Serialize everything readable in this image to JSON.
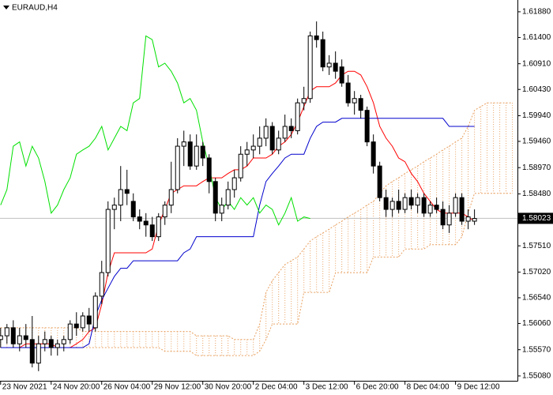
{
  "chart_data": {
    "type": "candlestick",
    "title": "EURAUD,H4",
    "ylim": [
      1.5499,
      1.621
    ],
    "xlim": [
      -0.1,
      81.8
    ],
    "yticks": [
      {
        "value": 1.6188,
        "label": "1.61880"
      },
      {
        "value": 1.614,
        "label": "1.61400"
      },
      {
        "value": 1.6091,
        "label": "1.60910"
      },
      {
        "value": 1.6043,
        "label": "1.60430"
      },
      {
        "value": 1.5994,
        "label": "1.59940"
      },
      {
        "value": 1.5946,
        "label": "1.59460"
      },
      {
        "value": 1.5897,
        "label": "1.58970"
      },
      {
        "value": 1.5848,
        "label": "1.58480"
      },
      {
        "value": 1.5751,
        "label": "1.57510"
      },
      {
        "value": 1.5702,
        "label": "1.57020"
      },
      {
        "value": 1.5654,
        "label": "1.56540"
      },
      {
        "value": 1.5606,
        "label": "1.56060"
      },
      {
        "value": 1.5557,
        "label": "1.55570"
      },
      {
        "value": 1.5508,
        "label": "1.55080"
      }
    ],
    "current_price": {
      "value": 1.58023,
      "label": "1.58023"
    },
    "xticks": [
      {
        "value": 0,
        "label": "23 Nov 2021"
      },
      {
        "value": 8,
        "label": "24 Nov 20:00"
      },
      {
        "value": 16,
        "label": "26 Nov 04:00"
      },
      {
        "value": 24,
        "label": "29 Nov 12:00"
      },
      {
        "value": 32,
        "label": "30 Nov 20:00"
      },
      {
        "value": 40,
        "label": "2 Dec 04:00"
      },
      {
        "value": 48,
        "label": "3 Dec 12:00"
      },
      {
        "value": 56,
        "label": "6 Dec 20:00"
      },
      {
        "value": 64,
        "label": "8 Dec 04:00"
      },
      {
        "value": 72,
        "label": "9 Dec 12:00"
      }
    ],
    "bull_color": "#ffffff",
    "bear_color": "#000000",
    "ohlc": [
      [
        1.5576,
        1.5598,
        1.5561,
        1.5583
      ],
      [
        1.5583,
        1.5605,
        1.5568,
        1.5598
      ],
      [
        1.5598,
        1.5612,
        1.5561,
        1.5568
      ],
      [
        1.5568,
        1.5598,
        1.5554,
        1.5583
      ],
      [
        1.5583,
        1.5605,
        1.5561,
        1.5576
      ],
      [
        1.5576,
        1.562,
        1.5524,
        1.5532
      ],
      [
        1.5532,
        1.5583,
        1.5517,
        1.5568
      ],
      [
        1.5568,
        1.5591,
        1.5554,
        1.5576
      ],
      [
        1.5576,
        1.5583,
        1.5546,
        1.5561
      ],
      [
        1.5561,
        1.5576,
        1.5546,
        1.5568
      ],
      [
        1.5568,
        1.5583,
        1.5554,
        1.5576
      ],
      [
        1.5576,
        1.5612,
        1.5568,
        1.5605
      ],
      [
        1.5605,
        1.5627,
        1.5583,
        1.5598
      ],
      [
        1.5598,
        1.5627,
        1.5591,
        1.562
      ],
      [
        1.562,
        1.5635,
        1.5591,
        1.5605
      ],
      [
        1.5598,
        1.5664,
        1.5591,
        1.5657
      ],
      [
        1.5657,
        1.5723,
        1.5642,
        1.5701
      ],
      [
        1.5701,
        1.5834,
        1.5694,
        1.5819
      ],
      [
        1.5819,
        1.5841,
        1.5782,
        1.5827
      ],
      [
        1.5827,
        1.59,
        1.5797,
        1.5856
      ],
      [
        1.5856,
        1.5893,
        1.5827,
        1.5849
      ],
      [
        1.5834,
        1.5849,
        1.5797,
        1.5805
      ],
      [
        1.5805,
        1.5819,
        1.5782,
        1.5797
      ],
      [
        1.5797,
        1.5812,
        1.5768,
        1.579
      ],
      [
        1.579,
        1.5805,
        1.576,
        1.5768
      ],
      [
        1.5768,
        1.5812,
        1.576,
        1.5805
      ],
      [
        1.5805,
        1.5834,
        1.579,
        1.5827
      ],
      [
        1.5827,
        1.5908,
        1.5812,
        1.5856
      ],
      [
        1.5856,
        1.5952,
        1.5849,
        1.5937
      ],
      [
        1.5937,
        1.5966,
        1.59,
        1.5945
      ],
      [
        1.5945,
        1.5959,
        1.5893,
        1.59
      ],
      [
        1.59,
        1.5959,
        1.5893,
        1.5937
      ],
      [
        1.5937,
        1.5945,
        1.59,
        1.5915
      ],
      [
        1.5915,
        1.5922,
        1.5849,
        1.5871
      ],
      [
        1.5871,
        1.5878,
        1.5797,
        1.5812
      ],
      [
        1.5812,
        1.5841,
        1.5797,
        1.5827
      ],
      [
        1.5827,
        1.5871,
        1.5819,
        1.5856
      ],
      [
        1.5856,
        1.5893,
        1.5841,
        1.5878
      ],
      [
        1.5878,
        1.5937,
        1.5871,
        1.5922
      ],
      [
        1.5922,
        1.5945,
        1.59,
        1.593
      ],
      [
        1.593,
        1.5959,
        1.5915,
        1.5937
      ],
      [
        1.5937,
        1.5974,
        1.5922,
        1.5952
      ],
      [
        1.5952,
        1.5989,
        1.5937,
        1.5974
      ],
      [
        1.5974,
        1.5982,
        1.5922,
        1.593
      ],
      [
        1.593,
        1.5966,
        1.5922,
        1.5952
      ],
      [
        1.5952,
        1.5996,
        1.5945,
        1.5974
      ],
      [
        1.5974,
        1.5989,
        1.5952,
        1.5966
      ],
      [
        1.5966,
        1.6026,
        1.5959,
        1.6018
      ],
      [
        1.6018,
        1.6048,
        1.6004,
        1.6026
      ],
      [
        1.6026,
        1.6151,
        1.6018,
        1.6143
      ],
      [
        1.6143,
        1.617,
        1.6121,
        1.6136
      ],
      [
        1.6136,
        1.6151,
        1.6077,
        1.6085
      ],
      [
        1.6085,
        1.6107,
        1.607,
        1.6092
      ],
      [
        1.6092,
        1.6114,
        1.6063,
        1.6077
      ],
      [
        1.6085,
        1.6099,
        1.6048,
        1.6055
      ],
      [
        1.6055,
        1.607,
        1.6011,
        1.6018
      ],
      [
        1.6018,
        1.604,
        1.5996,
        1.6026
      ],
      [
        1.6026,
        1.6033,
        1.5989,
        1.6004
      ],
      [
        1.6004,
        1.6011,
        1.5937,
        1.5945
      ],
      [
        1.5945,
        1.5959,
        1.5886,
        1.59
      ],
      [
        1.59,
        1.5908,
        1.5834,
        1.5841
      ],
      [
        1.5841,
        1.5856,
        1.5805,
        1.5819
      ],
      [
        1.5819,
        1.5841,
        1.5805,
        1.5834
      ],
      [
        1.5834,
        1.5856,
        1.5812,
        1.5819
      ],
      [
        1.5819,
        1.5849,
        1.5812,
        1.5841
      ],
      [
        1.5841,
        1.5856,
        1.5819,
        1.5827
      ],
      [
        1.5827,
        1.5849,
        1.5812,
        1.5841
      ],
      [
        1.5841,
        1.5849,
        1.5805,
        1.5812
      ],
      [
        1.5812,
        1.5834,
        1.5805,
        1.5827
      ],
      [
        1.5827,
        1.5841,
        1.5812,
        1.5819
      ],
      [
        1.5819,
        1.5834,
        1.5782,
        1.579
      ],
      [
        1.579,
        1.5827,
        1.5775,
        1.5812
      ],
      [
        1.5812,
        1.5849,
        1.5805,
        1.5841
      ],
      [
        1.5841,
        1.5849,
        1.579,
        1.5797
      ],
      [
        1.5797,
        1.5819,
        1.5782,
        1.5805
      ],
      [
        1.5797,
        1.5819,
        1.579,
        1.5802
      ]
    ],
    "lines": [
      {
        "color": "#ff0000",
        "values": [
          1.5561,
          1.5561,
          1.5561,
          1.5561,
          1.5568,
          1.5568,
          1.5568,
          1.5568,
          1.5568,
          1.5561,
          1.5561,
          1.5561,
          1.5568,
          1.5576,
          1.5591,
          1.5598,
          1.5642,
          1.5701,
          1.5738,
          1.5738,
          1.5738,
          1.5738,
          1.5738,
          1.5738,
          1.5745,
          1.579,
          1.5819,
          1.5849,
          1.5856,
          1.5863,
          1.5863,
          1.5863,
          1.5871,
          1.5878,
          1.5878,
          1.5878,
          1.5886,
          1.5893,
          1.5893,
          1.59,
          1.5915,
          1.5915,
          1.5915,
          1.5922,
          1.5937,
          1.5945,
          1.5959,
          1.5982,
          1.6011,
          1.604,
          1.6048,
          1.6048,
          1.6048,
          1.6055,
          1.607,
          1.6077,
          1.6077,
          1.607,
          1.6048,
          1.6018,
          1.5974,
          1.5952,
          1.5937,
          1.5915,
          1.5908,
          1.5886,
          1.5871,
          1.5849,
          1.5834,
          1.5819,
          1.5812,
          1.5812,
          1.5812,
          1.5812,
          1.5805,
          1.5797
        ]
      },
      {
        "color": "#0000cd",
        "values": [
          1.5561,
          1.5561,
          1.5561,
          1.5561,
          1.5561,
          1.5561,
          1.5561,
          1.5561,
          1.5561,
          1.5561,
          1.5561,
          1.5561,
          1.5561,
          1.5561,
          1.5568,
          1.562,
          1.565,
          1.5672,
          1.5694,
          1.5709,
          1.5709,
          1.5723,
          1.5723,
          1.5723,
          1.5723,
          1.5723,
          1.5723,
          1.5723,
          1.5723,
          1.5738,
          1.5745,
          1.5768,
          1.5768,
          1.5768,
          1.5768,
          1.5768,
          1.5768,
          1.5768,
          1.5768,
          1.5768,
          1.5768,
          1.5827,
          1.5871,
          1.5886,
          1.59,
          1.5915,
          1.5922,
          1.5922,
          1.5922,
          1.5952,
          1.5974,
          1.5982,
          1.5982,
          1.5982,
          1.5989,
          1.5989,
          1.5989,
          1.5989,
          1.5989,
          1.5989,
          1.5989,
          1.5989,
          1.5989,
          1.5989,
          1.5989,
          1.5989,
          1.5989,
          1.5989,
          1.5989,
          1.5989,
          1.5989,
          1.5974,
          1.5974,
          1.5974,
          1.5974,
          1.5974
        ]
      },
      {
        "color": "#00e000",
        "values": [
          1.5827,
          1.5856,
          1.5937,
          1.5945,
          1.59,
          1.5937,
          1.5915,
          1.5871,
          1.5812,
          1.5827,
          1.5856,
          1.5878,
          1.5922,
          1.593,
          1.5937,
          1.5952,
          1.5974,
          1.593,
          1.5952,
          1.5974,
          1.5966,
          1.6018,
          1.6026,
          1.6143,
          1.6136,
          1.6085,
          1.6092,
          1.6077,
          1.6055,
          1.6018,
          1.6026,
          1.6004,
          1.5945,
          1.59,
          1.5841,
          1.5819,
          1.5834,
          1.5819,
          1.5841,
          1.5827,
          1.5841,
          1.5812,
          1.5827,
          1.5819,
          1.579,
          1.5812,
          1.5841,
          1.5797,
          1.5805,
          1.5802
        ]
      }
    ],
    "cloud": {
      "color": "#e8a060",
      "span_a": [
        1.5598,
        1.5598,
        1.5598,
        1.5598,
        1.5598,
        1.5598,
        1.5598,
        1.5598,
        1.5598,
        1.5598,
        1.5598,
        1.5598,
        1.5598,
        1.5591,
        1.5591,
        1.5591,
        1.5591,
        1.5591,
        1.5591,
        1.5591,
        1.5591,
        1.5591,
        1.5591,
        1.5591,
        1.5591,
        1.5591,
        1.5591,
        1.5591,
        1.5591,
        1.5591,
        1.5591,
        1.5583,
        1.5583,
        1.5583,
        1.5583,
        1.5583,
        1.5583,
        1.5576,
        1.5576,
        1.5576,
        1.5576,
        1.5605,
        1.5664,
        1.5686,
        1.5701,
        1.5716,
        1.5723,
        1.573,
        1.5745,
        1.576,
        1.5768,
        1.5775,
        1.5782,
        1.579,
        1.5797,
        1.5805,
        1.5812,
        1.5819,
        1.5827,
        1.5834,
        1.5849,
        1.5863,
        1.5871,
        1.5878,
        1.5886,
        1.5893,
        1.59,
        1.5908,
        1.5915,
        1.5922,
        1.593,
        1.5937,
        1.5945,
        1.5952,
        1.5974,
        1.6004,
        1.6011,
        1.6018,
        1.6018,
        1.6018,
        1.6018,
        1.6018
      ],
      "span_b": [
        1.5561,
        1.5561,
        1.5561,
        1.5561,
        1.5561,
        1.5561,
        1.5561,
        1.5561,
        1.5561,
        1.5561,
        1.5561,
        1.5561,
        1.5561,
        1.5561,
        1.5561,
        1.5561,
        1.5561,
        1.5561,
        1.5561,
        1.5561,
        1.5561,
        1.5561,
        1.5561,
        1.5561,
        1.5561,
        1.5561,
        1.5554,
        1.5554,
        1.5554,
        1.5554,
        1.5554,
        1.5546,
        1.5546,
        1.5546,
        1.5546,
        1.5546,
        1.5546,
        1.5546,
        1.5546,
        1.5546,
        1.5546,
        1.5554,
        1.5576,
        1.5605,
        1.5605,
        1.5605,
        1.5605,
        1.5605,
        1.5664,
        1.5664,
        1.5664,
        1.5664,
        1.5664,
        1.5701,
        1.5701,
        1.5701,
        1.5701,
        1.5701,
        1.5701,
        1.573,
        1.573,
        1.573,
        1.573,
        1.573,
        1.5745,
        1.5745,
        1.5745,
        1.5745,
        1.5753,
        1.5753,
        1.5753,
        1.5753,
        1.5753,
        1.5768,
        1.5812,
        1.5849,
        1.5849,
        1.5849,
        1.5849,
        1.5849,
        1.5849,
        1.5849
      ]
    }
  }
}
